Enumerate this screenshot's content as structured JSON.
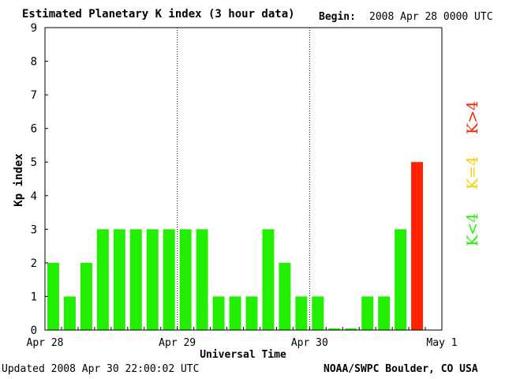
{
  "header": {
    "title": "Estimated Planetary K index (3 hour data)",
    "begin_label": "Begin:",
    "begin_value": "2008 Apr 28 0000 UTC"
  },
  "footer": {
    "updated": "Updated 2008 Apr 30 22:00:02 UTC",
    "source": "NOAA/SWPC Boulder, CO USA"
  },
  "legend": {
    "high": {
      "label": "K>4",
      "color": "#ff2200"
    },
    "equal": {
      "label": "K=4",
      "color": "#ffcc00"
    },
    "low": {
      "label": "K<4",
      "color": "#22ee00"
    }
  },
  "chart_data": {
    "type": "bar",
    "title": "Estimated Planetary K index (3 hour data)",
    "xlabel": "Universal Time",
    "ylabel": "Kp index",
    "ylim": [
      0,
      9
    ],
    "yticks": [
      0,
      1,
      2,
      3,
      4,
      5,
      6,
      7,
      8,
      9
    ],
    "x_day_labels": [
      "Apr 28",
      "Apr 29",
      "Apr 30",
      "May 1"
    ],
    "interval_hours": 3,
    "values": [
      2,
      1,
      2,
      3,
      3,
      3,
      3,
      3,
      3,
      3,
      1,
      1,
      1,
      3,
      2,
      1,
      1,
      0.05,
      0.05,
      1,
      1,
      3,
      5
    ],
    "colors": {
      "low": "#22ee00",
      "equal": "#ffcc00",
      "high": "#ff2200"
    },
    "day_separators": "dotted"
  }
}
